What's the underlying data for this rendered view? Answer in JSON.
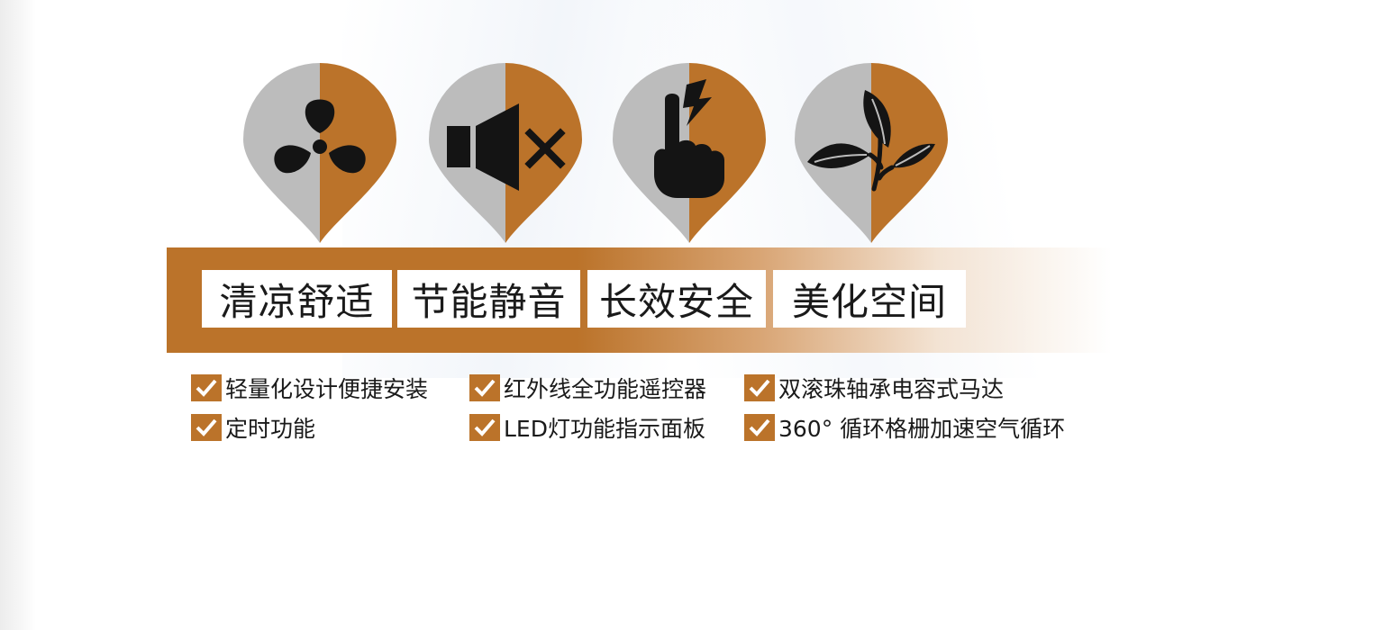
{
  "colors": {
    "accent": "#bb732a",
    "gray": "#bcbcbc",
    "ink": "#141414",
    "text": "#1a1a1a"
  },
  "icons": [
    {
      "name": "fan-icon"
    },
    {
      "name": "speaker-mute-icon"
    },
    {
      "name": "hand-touch-lightning-icon"
    },
    {
      "name": "leaf-icon"
    }
  ],
  "labels": [
    "清凉舒适",
    "节能静音",
    "长效安全",
    "美化空间"
  ],
  "features": [
    "轻量化设计便捷安装",
    "红外线全功能遥控器",
    "双滚珠轴承电容式马达",
    "定时功能",
    "LED灯功能指示面板",
    "360° 循环格栅加速空气循环"
  ],
  "check_icon": "checkmark-icon"
}
